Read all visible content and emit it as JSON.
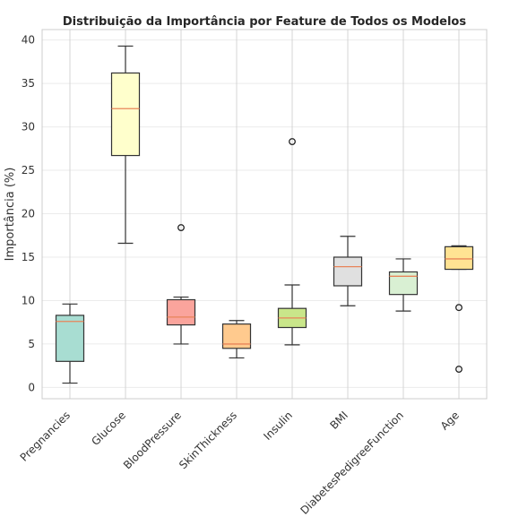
{
  "chart_data": {
    "type": "boxplot",
    "title": "Distribuição da Importância por Feature de Todos os Modelos",
    "xlabel": "",
    "ylabel": "Importância (%)",
    "ylim": [
      -1.3,
      41.2
    ],
    "yticks": [
      0,
      5,
      10,
      15,
      20,
      25,
      30,
      35,
      40
    ],
    "grid": true,
    "categories": [
      "Pregnancies",
      "Glucose",
      "BloodPressure",
      "SkinThickness",
      "Insulin",
      "BMI",
      "DiabetesPedigreeFunction",
      "Age"
    ],
    "boxes": [
      {
        "whisker_low": 0.5,
        "q1": 3.0,
        "median": 7.6,
        "q3": 8.3,
        "whisker_high": 9.6,
        "outliers": [],
        "color": "#a8ddd2"
      },
      {
        "whisker_low": 16.6,
        "q1": 26.7,
        "median": 32.1,
        "q3": 36.2,
        "whisker_high": 39.3,
        "outliers": [],
        "color": "#ffffcc"
      },
      {
        "whisker_low": 5.0,
        "q1": 7.2,
        "median": 8.1,
        "q3": 10.1,
        "whisker_high": 10.4,
        "outliers": [
          18.4
        ],
        "color": "#faa49c"
      },
      {
        "whisker_low": 3.4,
        "q1": 4.5,
        "median": 5.0,
        "q3": 7.3,
        "whisker_high": 7.7,
        "outliers": [],
        "color": "#ffca8e"
      },
      {
        "whisker_low": 4.9,
        "q1": 6.9,
        "median": 8.0,
        "q3": 9.1,
        "whisker_high": 11.8,
        "outliers": [
          28.3
        ],
        "color": "#c9e68a"
      },
      {
        "whisker_low": 9.4,
        "q1": 11.7,
        "median": 13.9,
        "q3": 15.0,
        "whisker_high": 17.4,
        "outliers": [],
        "color": "#e0e0e0"
      },
      {
        "whisker_low": 8.8,
        "q1": 10.7,
        "median": 12.8,
        "q3": 13.3,
        "whisker_high": 14.8,
        "outliers": [],
        "color": "#d9f0d3"
      },
      {
        "whisker_low": 13.6,
        "q1": 13.6,
        "median": 14.8,
        "q3": 16.2,
        "whisker_high": 16.3,
        "outliers": [
          9.2,
          2.1
        ],
        "color": "#ffe393"
      }
    ],
    "median_color": "#e8845a",
    "edge_color": "#333333"
  }
}
